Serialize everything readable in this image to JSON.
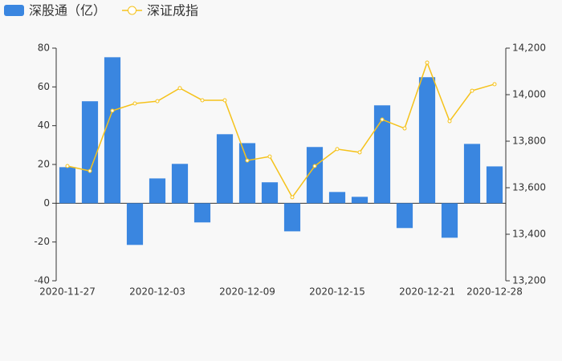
{
  "chart_data": {
    "type": "bar_line",
    "categories": [
      "2020-11-27",
      null,
      null,
      null,
      "2020-12-03",
      null,
      null,
      null,
      "2020-12-09",
      null,
      null,
      null,
      "2020-12-15",
      null,
      null,
      null,
      "2020-12-21",
      null,
      null,
      "2020-12-28"
    ],
    "series": [
      {
        "name": "深股通（亿）",
        "type": "bar",
        "color": "#3a86e0",
        "axis": "y",
        "values": [
          18.6,
          52.6,
          75.3,
          -21.5,
          12.8,
          20.3,
          -9.9,
          35.6,
          31.0,
          10.8,
          -14.5,
          29.0,
          5.8,
          3.3,
          50.5,
          -12.8,
          65.0,
          -17.8,
          30.6,
          19.0
        ]
      },
      {
        "name": "深证成指",
        "type": "line",
        "color": "#f5c21b",
        "axis": "y2",
        "values": [
          13693,
          13672,
          13931,
          13962,
          13972,
          14028,
          13976,
          13976,
          13717,
          13734,
          13559,
          13693,
          13766,
          13752,
          13893,
          13855,
          14138,
          13886,
          14017,
          14045
        ]
      }
    ],
    "ylim": [
      -40,
      80
    ],
    "yticks": [
      -40,
      -20,
      0,
      20,
      40,
      60,
      80
    ],
    "y2lim": [
      13200,
      14200
    ],
    "y2ticks": [
      {
        "value": 13200,
        "label": "13,200"
      },
      {
        "value": 13400,
        "label": "13,400"
      },
      {
        "value": 13600,
        "label": "13,600"
      },
      {
        "value": 13800,
        "label": "13,800"
      },
      {
        "value": 14000,
        "label": "14,000"
      },
      {
        "value": 14200,
        "label": "14,200"
      }
    ],
    "legend": "top-left"
  }
}
